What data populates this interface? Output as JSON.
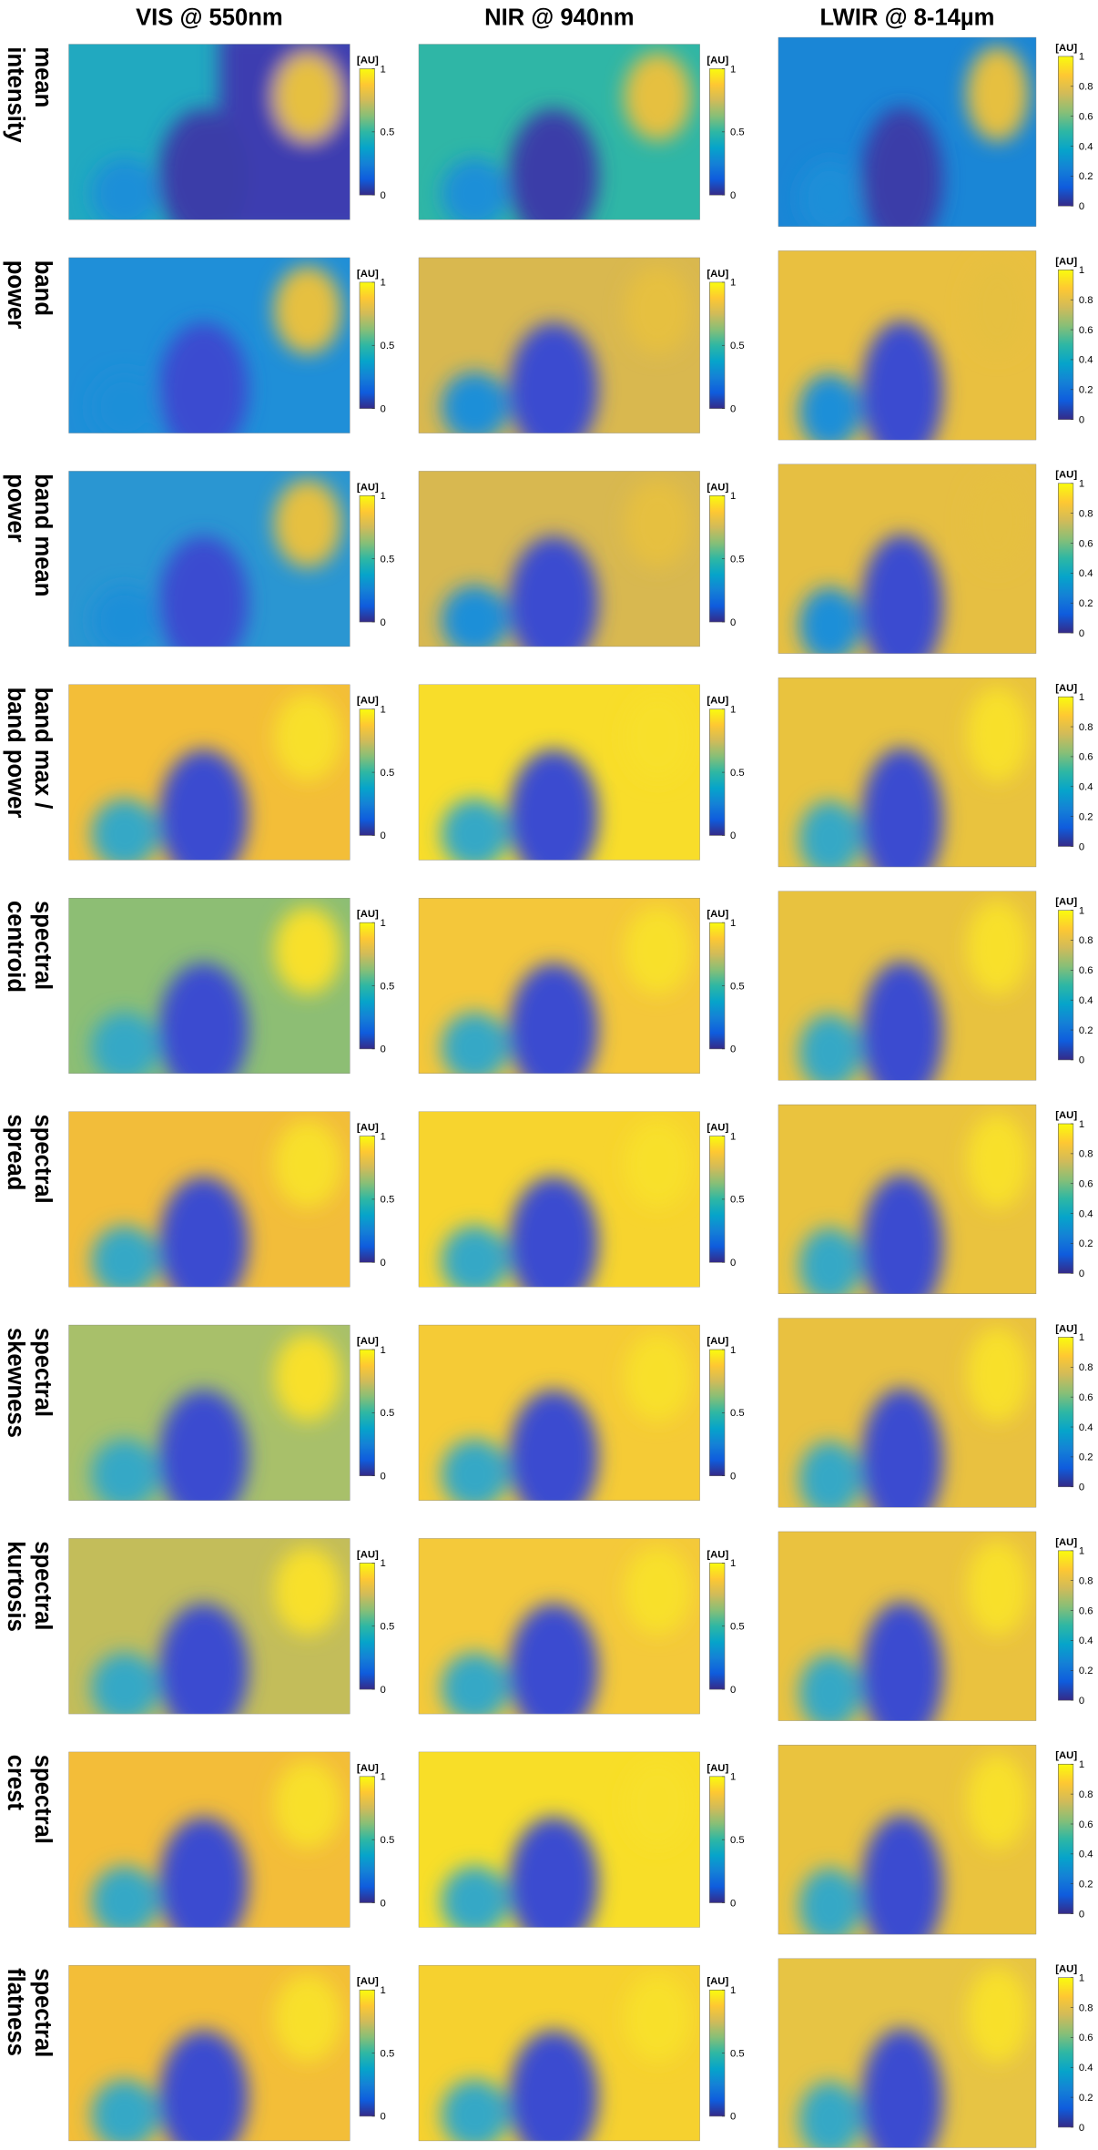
{
  "columns": [
    {
      "title": "VIS @ 550nm",
      "colorbar": {
        "label": "[AU]",
        "lim": [
          0,
          1
        ],
        "ticks": [
          0,
          0.5,
          1
        ]
      }
    },
    {
      "title": "NIR @ 940nm",
      "colorbar": {
        "label": "[AU]",
        "lim": [
          0,
          1
        ],
        "ticks": [
          0,
          0.5,
          1
        ]
      }
    },
    {
      "title": "LWIR @ 8-14µm",
      "colorbar": {
        "label": "[AU]",
        "lim": [
          0,
          1
        ],
        "ticks": [
          0,
          0.2,
          0.4,
          0.6,
          0.8,
          1
        ]
      }
    }
  ],
  "rows": [
    [
      "mean",
      "intensity"
    ],
    [
      "band",
      "power"
    ],
    [
      "band mean",
      "power"
    ],
    [
      "band max /",
      "band power"
    ],
    [
      "spectral",
      "centroid"
    ],
    [
      "spectral",
      "spread"
    ],
    [
      "spectral",
      "skewness"
    ],
    [
      "spectral",
      "kurtosis"
    ],
    [
      "spectral",
      "crest"
    ],
    [
      "spectral",
      "flatness"
    ]
  ]
}
